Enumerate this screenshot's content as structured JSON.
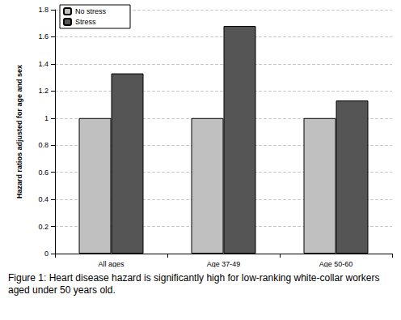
{
  "chart_data": {
    "type": "bar",
    "ylabel": "Hazard ratios adjusted for age and sex",
    "caption": "Figure 1: Heart disease hazard is significantly high for low-ranking white-collar workers aged under 50 years old.",
    "categories": [
      "All ages",
      "Age 37-49",
      "Age 50-60"
    ],
    "series": [
      {
        "name": "No stress",
        "color": "#c0c0c0",
        "values": [
          1,
          1,
          1
        ]
      },
      {
        "name": "Stress",
        "color": "#555555",
        "values": [
          1.33,
          1.68,
          1.13
        ]
      }
    ],
    "ylim": [
      0,
      1.8
    ],
    "yticks": [
      0,
      0.2,
      0.4,
      0.6,
      0.8,
      1,
      1.2,
      1.4,
      1.6,
      1.8
    ],
    "grid": true,
    "legend": "top-left"
  }
}
